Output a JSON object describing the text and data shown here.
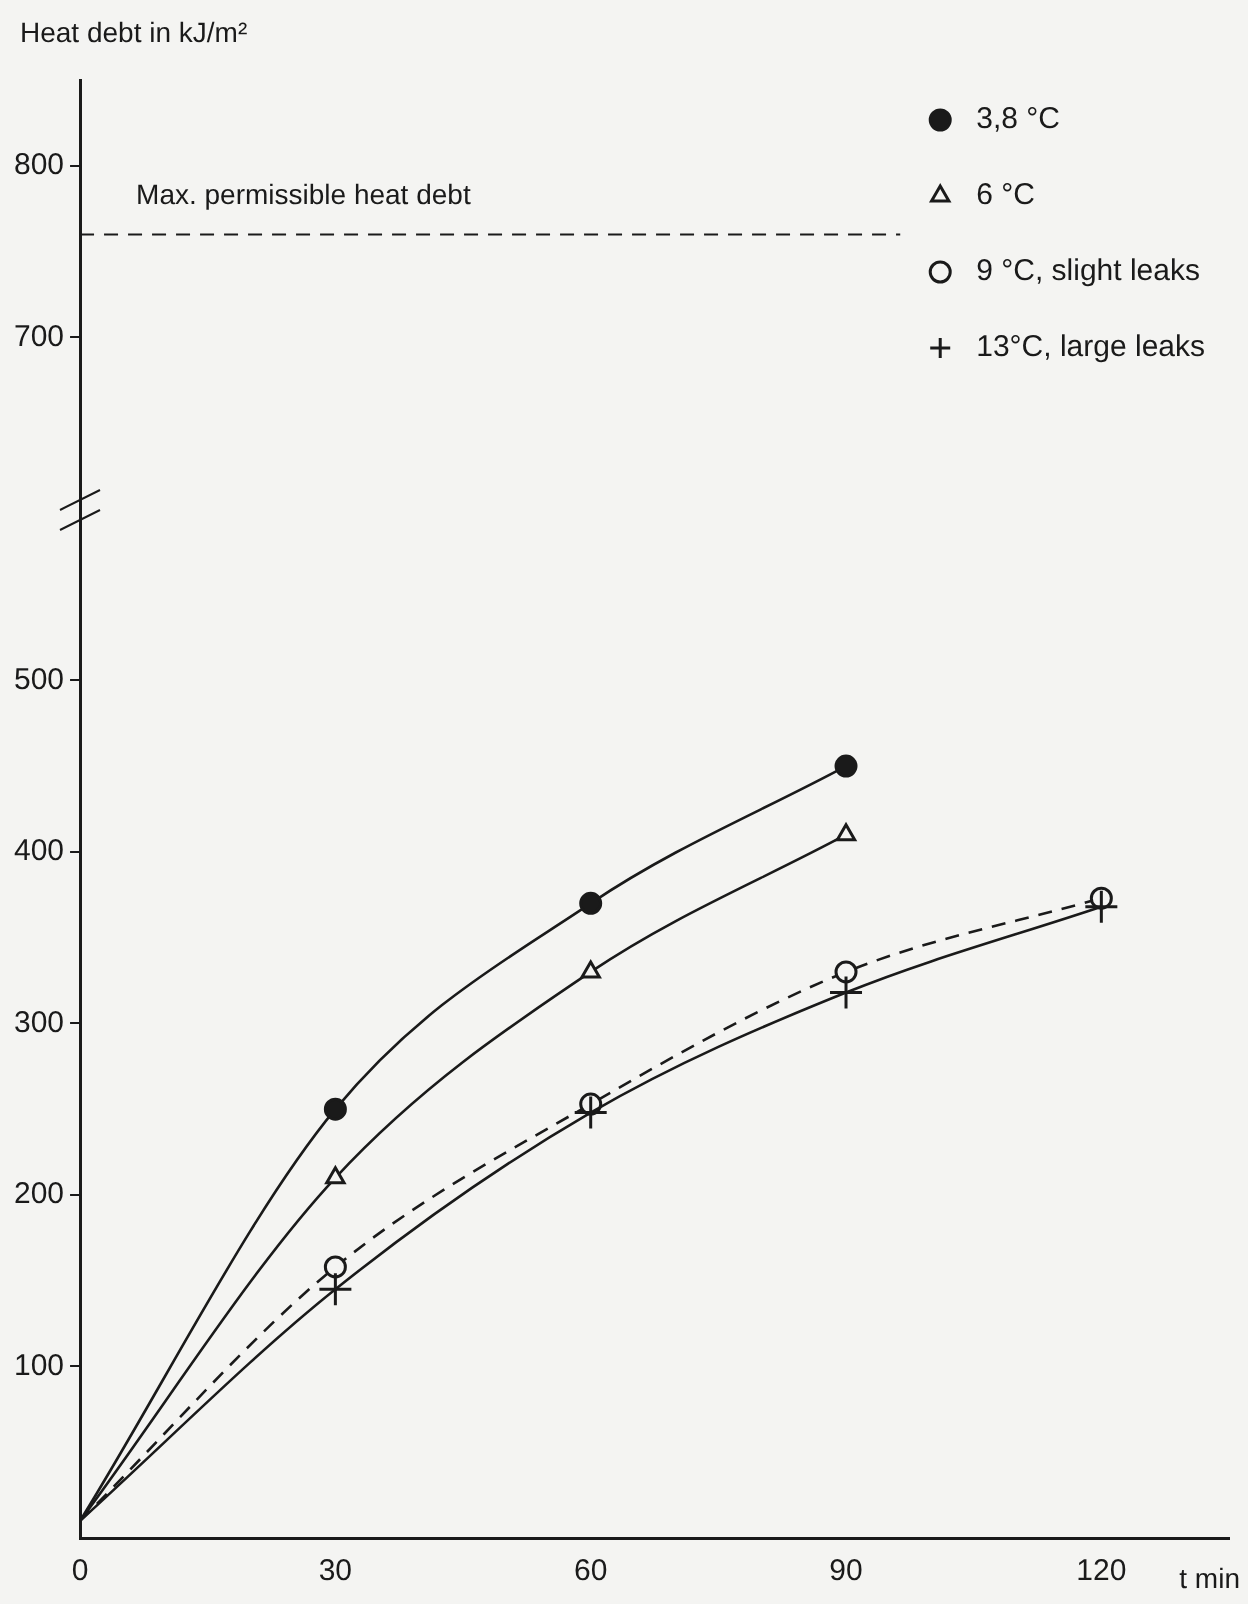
{
  "chart_data": {
    "type": "line",
    "ylabel": "Heat debt in kJ/m²",
    "xlabel": "t min",
    "x": [
      0,
      30,
      60,
      90,
      120
    ],
    "series": [
      {
        "name": "3,8 °C",
        "color": "#1a1a1a",
        "marker": "circle",
        "line_style": "solid",
        "values": [
          10,
          250,
          370,
          450,
          null
        ]
      },
      {
        "name": "6 °C",
        "color": "#1a1a1a",
        "marker": "triangle",
        "line_style": "solid",
        "values": [
          10,
          210,
          330,
          410,
          null
        ]
      },
      {
        "name": "9 °C, slight leaks",
        "color": "#1a1a1a",
        "marker": "open-circle",
        "line_style": "dashed",
        "values": [
          10,
          158,
          253,
          330,
          373
        ]
      },
      {
        "name": "13°C, large leaks",
        "color": "#1a1a1a",
        "marker": "cross",
        "line_style": "solid",
        "values": [
          10,
          145,
          248,
          318,
          368
        ]
      }
    ],
    "xlim": [
      0,
      135
    ],
    "xticks": [
      0,
      30,
      60,
      90,
      120
    ],
    "ylim": [
      0,
      850
    ],
    "yticks": [
      100,
      200,
      300,
      400,
      500,
      700,
      800
    ],
    "ref_lines": [
      {
        "axis": "y",
        "value": 760,
        "label": "Max. permissible heat debt",
        "line_style": "dashed"
      }
    ],
    "legend": "top right",
    "grid": false
  }
}
